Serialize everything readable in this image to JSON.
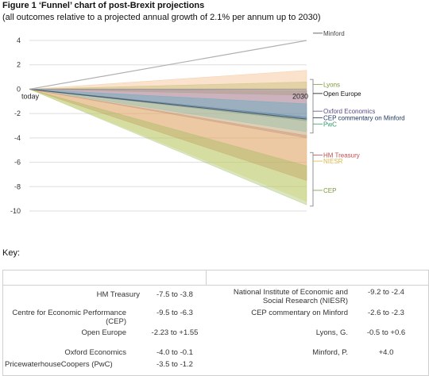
{
  "figure": {
    "title": "Figure 1 ‘Funnel’ chart of post-Brexit projections",
    "subtitle": "(all outcomes relative to a projected annual growth of 2.1% per annum up to 2030)"
  },
  "chart_data": {
    "type": "area",
    "x_start_label": "today",
    "x_end_label": "2030",
    "ylim": [
      -10,
      4
    ],
    "yticks": [
      4,
      2,
      0,
      -2,
      -4,
      -6,
      -8,
      -10
    ],
    "grid": true,
    "series": [
      {
        "name": "Minford",
        "low": 4.0,
        "high": 4.0,
        "color": "#b0b0b0"
      },
      {
        "name": "Lyons",
        "low": -0.5,
        "high": 0.6,
        "color": "#9bbb59"
      },
      {
        "name": "Open Europe",
        "low": -2.23,
        "high": 1.55,
        "color": "#f3b27a"
      },
      {
        "name": "Oxford Economics",
        "low": -4.0,
        "high": -0.1,
        "color": "#8064a2"
      },
      {
        "name": "CEP commentary on Minford",
        "low": -2.6,
        "high": -2.3,
        "color": "#1f3864"
      },
      {
        "name": "PwC",
        "low": -3.5,
        "high": -1.2,
        "color": "#4bacc6"
      },
      {
        "name": "HM Treasury",
        "low": -7.5,
        "high": -3.8,
        "color": "#c0504d"
      },
      {
        "name": "NIESR",
        "low": -9.2,
        "high": -2.4,
        "color": "#f4e07a"
      },
      {
        "name": "CEP",
        "low": -9.5,
        "high": -6.3,
        "color": "#9bbb59"
      }
    ],
    "labels": [
      {
        "text": "Minford",
        "y": 4.4,
        "color": "#444444"
      },
      {
        "text": "Lyons",
        "y": 0.2,
        "color": "#7a9a3a"
      },
      {
        "text": "Open Europe",
        "y": -0.55,
        "color": "#111111"
      },
      {
        "text": "Oxford Economics",
        "y": -2.0,
        "color": "#5a4a8a"
      },
      {
        "text": "CEP commentary on Minford",
        "y": -2.55,
        "color": "#1f3864"
      },
      {
        "text": "PwC",
        "y": -3.05,
        "color": "#2e9a6a"
      },
      {
        "text": "HM Treasury",
        "y": -5.6,
        "color": "#c0504d"
      },
      {
        "text": "NIESR",
        "y": -6.1,
        "color": "#d9b84a"
      },
      {
        "text": "CEP",
        "y": -8.5,
        "color": "#7a9a3a"
      }
    ]
  },
  "key": {
    "label": "Key:",
    "rows": [
      {
        "left_name": "HM Treasury",
        "left_range": "-7.5 to -3.8",
        "right_name": "National Institute of Economic and Social Research (NIESR)",
        "right_range": "-9.2 to -2.4"
      },
      {
        "left_name": "Centre for Economic Performance (CEP)",
        "left_range": "-9.5 to -6.3",
        "right_name": "CEP commentary on Minford",
        "right_range": "-2.6 to -2.3"
      },
      {
        "left_name": "Open Europe",
        "left_range": "-2.23 to +1.55",
        "right_name": "Lyons, G.",
        "right_range": "-0.5 to +0.6"
      },
      {
        "left_name": "Oxford Economics",
        "left_range": "-4.0 to -0.1",
        "right_name": "Minford, P.",
        "right_range": "+4.0"
      },
      {
        "left_name": "PricewaterhouseCoopers (PwC)",
        "left_range": "-3.5 to -1.2",
        "right_name": "",
        "right_range": ""
      }
    ]
  }
}
